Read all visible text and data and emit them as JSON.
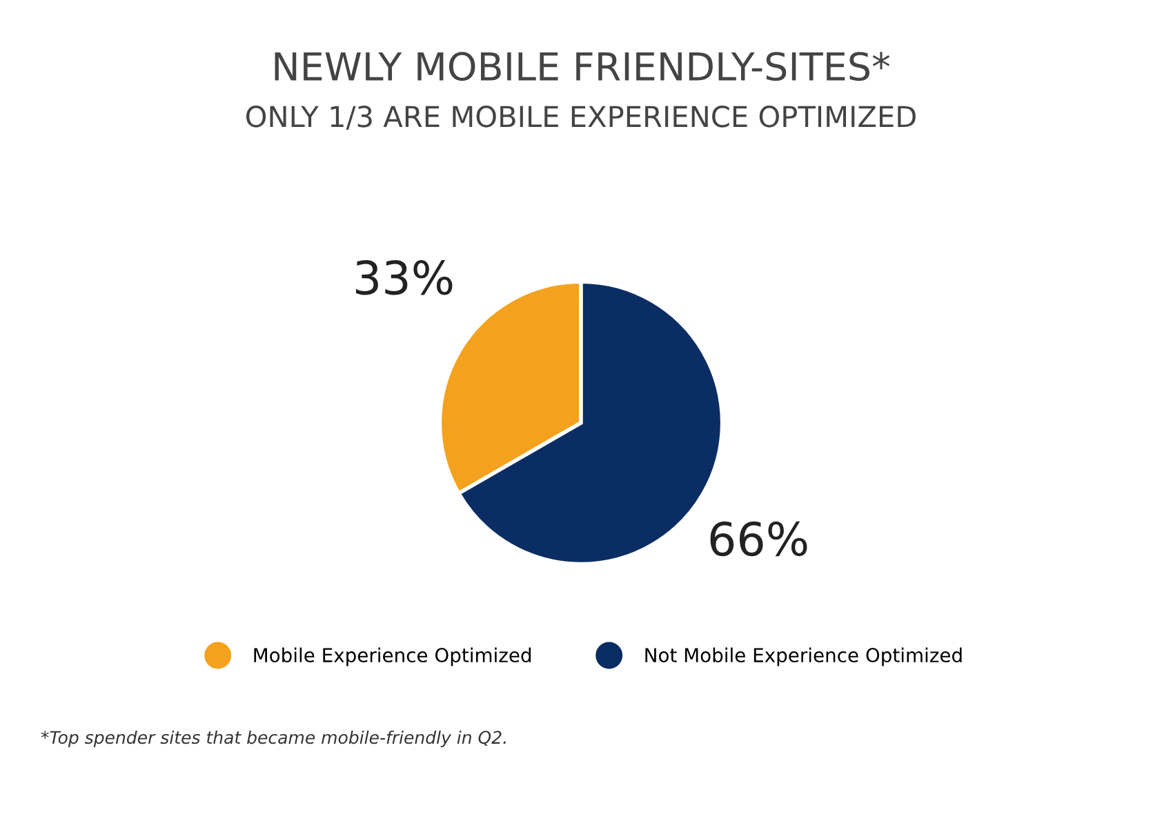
{
  "chart_data": {
    "type": "pie",
    "title": "NEWLY MOBILE FRIENDLY-SITES*",
    "subtitle": "ONLY 1/3 ARE MOBILE EXPERIENCE OPTIMIZED",
    "categories": [
      "Mobile Experience Optimized",
      "Not Mobile Experience Optimized"
    ],
    "values": [
      33,
      66
    ],
    "colors": [
      "#f4a21d",
      "#0a2d63"
    ],
    "value_labels": [
      "33%",
      "66%"
    ],
    "legend": "bottom",
    "annotations": [
      "*Top spender sites that became mobile-friendly in Q2."
    ]
  }
}
